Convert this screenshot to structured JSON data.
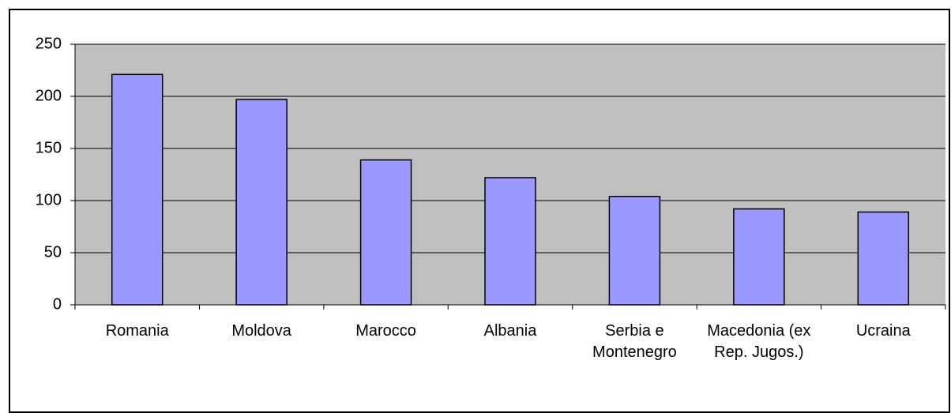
{
  "chart_data": {
    "type": "bar",
    "categories": [
      "Romania",
      "Moldova",
      "Marocco",
      "Albania",
      "Serbia e Montenegro",
      "Macedonia (ex Rep. Jugos.)",
      "Ucraina"
    ],
    "values": [
      221,
      197,
      139,
      122,
      104,
      92,
      89
    ],
    "color": "#9999ff",
    "ylim": [
      0,
      250
    ],
    "yticks": [
      0,
      50,
      100,
      150,
      200,
      250
    ],
    "grid": true
  }
}
